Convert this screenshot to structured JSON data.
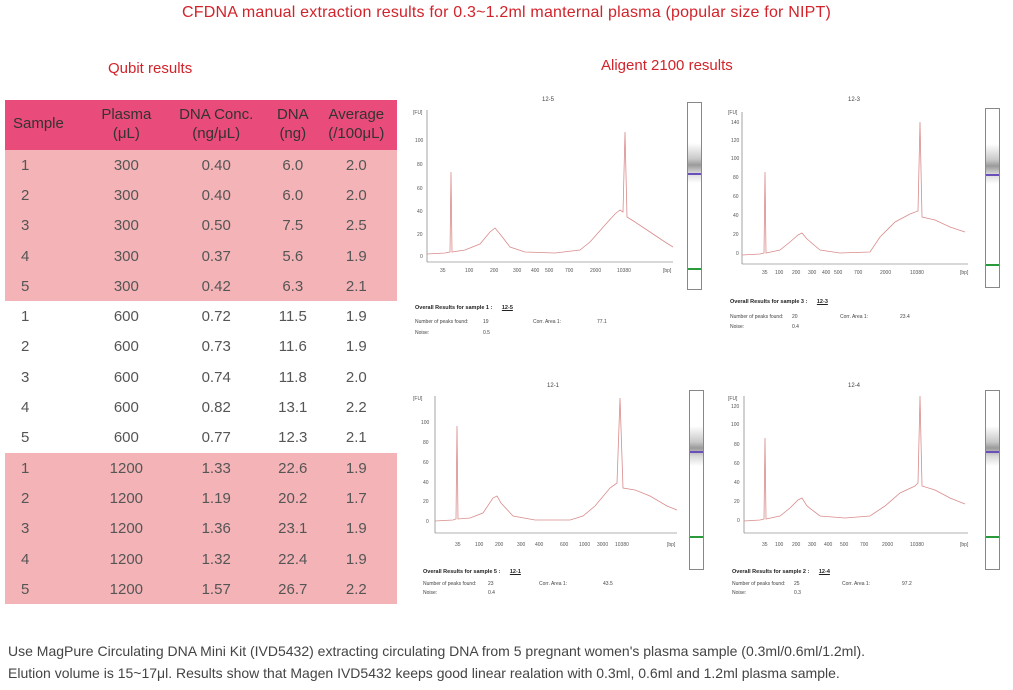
{
  "title": "CFDNA manual extraction results for 0.3~1.2ml manternal plasma  (popular size for NIPT)",
  "qubit_title": "Qubit results",
  "agilent_title": "Aligent 2100  results",
  "table": {
    "headers": [
      "Sample",
      "Plasma",
      "DNA Conc.",
      "DNA",
      "Average"
    ],
    "subheaders": [
      "",
      "(μL)",
      "(ng/μL)",
      "(ng)",
      "(/100μL)"
    ],
    "rows": [
      [
        "1",
        "300",
        "0.40",
        "6.0",
        "2.0"
      ],
      [
        "2",
        "300",
        "0.40",
        "6.0",
        "2.0"
      ],
      [
        "3",
        "300",
        "0.50",
        "7.5",
        "2.5"
      ],
      [
        "4",
        "300",
        "0.37",
        "5.6",
        "1.9"
      ],
      [
        "5",
        "300",
        "0.42",
        "6.3",
        "2.1"
      ],
      [
        "1",
        "600",
        "0.72",
        "11.5",
        "1.9"
      ],
      [
        "2",
        "600",
        "0.73",
        "11.6",
        "1.9"
      ],
      [
        "3",
        "600",
        "0.74",
        "11.8",
        "2.0"
      ],
      [
        "4",
        "600",
        "0.82",
        "13.1",
        "2.2"
      ],
      [
        "5",
        "600",
        "0.77",
        "12.3",
        "2.1"
      ],
      [
        "1",
        "1200",
        "1.33",
        "22.6",
        "1.9"
      ],
      [
        "2",
        "1200",
        "1.19",
        "20.2",
        "1.7"
      ],
      [
        "3",
        "1200",
        "1.36",
        "23.1",
        "1.9"
      ],
      [
        "4",
        "1200",
        "1.32",
        "22.4",
        "1.9"
      ],
      [
        "5",
        "1200",
        "1.57",
        "26.7",
        "2.2"
      ]
    ],
    "row_groups": [
      "pink",
      "pink",
      "pink",
      "pink",
      "pink",
      "white",
      "white",
      "white",
      "white",
      "white",
      "pink",
      "pink",
      "pink",
      "pink",
      "pink"
    ]
  },
  "panels": [
    {
      "sample_id": "12-5",
      "y_unit": "[FU]",
      "x_unit": "[bp]",
      "y_ticks": [
        "100",
        "80",
        "60",
        "40",
        "20",
        "0"
      ],
      "x_ticks": [
        "35",
        "100",
        "200",
        "300",
        "400",
        "500",
        "700",
        "2000",
        "10380"
      ],
      "result_title": "Overall Results for sample 1 :",
      "result_sample": "12-5",
      "peaks_label": "Number of peaks found:",
      "peaks_value": "19",
      "area_label": "Corr. Area 1:",
      "area_value": "77.1",
      "noise_label": "Noise:",
      "noise_value": "0.5"
    },
    {
      "sample_id": "12-3",
      "y_unit": "[FU]",
      "x_unit": "[bp]",
      "y_ticks": [
        "140",
        "120",
        "100",
        "80",
        "60",
        "40",
        "20",
        "0"
      ],
      "x_ticks": [
        "35",
        "100",
        "200",
        "300",
        "400",
        "500",
        "700",
        "2000",
        "10380"
      ],
      "result_title": "Overall Results for sample 3 :",
      "result_sample": "12-3",
      "peaks_label": "Number of peaks found:",
      "peaks_value": "20",
      "area_label": "Corr. Area 1:",
      "area_value": "23.4",
      "noise_label": "Noise:",
      "noise_value": "0.4"
    },
    {
      "sample_id": "12-1",
      "y_unit": "[FU]",
      "x_unit": "[bp]",
      "y_ticks": [
        "100",
        "80",
        "60",
        "40",
        "20",
        "0"
      ],
      "x_ticks": [
        "35",
        "100",
        "200",
        "300",
        "400",
        "600",
        "1000",
        "3000",
        "10380"
      ],
      "result_title": "Overall Results for sample 5 :",
      "result_sample": "12-1",
      "peaks_label": "Number of peaks found:",
      "peaks_value": "23",
      "area_label": "Corr. Area 1:",
      "area_value": "43.5",
      "noise_label": "Noise:",
      "noise_value": "0.4"
    },
    {
      "sample_id": "12-4",
      "y_unit": "[FU]",
      "x_unit": "[bp]",
      "y_ticks": [
        "120",
        "100",
        "80",
        "60",
        "40",
        "20",
        "0"
      ],
      "x_ticks": [
        "35",
        "100",
        "200",
        "300",
        "400",
        "500",
        "700",
        "2000",
        "10380"
      ],
      "result_title": "Overall Results for sample 2 :",
      "result_sample": "12-4",
      "peaks_label": "Number of peaks found:",
      "peaks_value": "25",
      "area_label": "Corr. Area 1:",
      "area_value": "97.2",
      "noise_label": "Noise:",
      "noise_value": "0.3"
    }
  ],
  "caption_line1": "Use MagPure Circulating DNA Mini Kit (IVD5432) extracting circulating DNA from 5 pregnant women's plasma sample (0.3ml/0.6ml/1.2ml).",
  "caption_line2": "Elution volume is 15~17μl. Results show that Magen IVD5432 keeps good linear realation with 0.3ml, 0.6ml and 1.2ml plasma sample.",
  "colors": {
    "title": "#d2232a",
    "header_bg": "#e94b7a",
    "pink_row": "#f4b4b7",
    "trace": "#d98b8b",
    "marker_band": "#6a50b8",
    "ladder_band": "#2b9a3a"
  }
}
